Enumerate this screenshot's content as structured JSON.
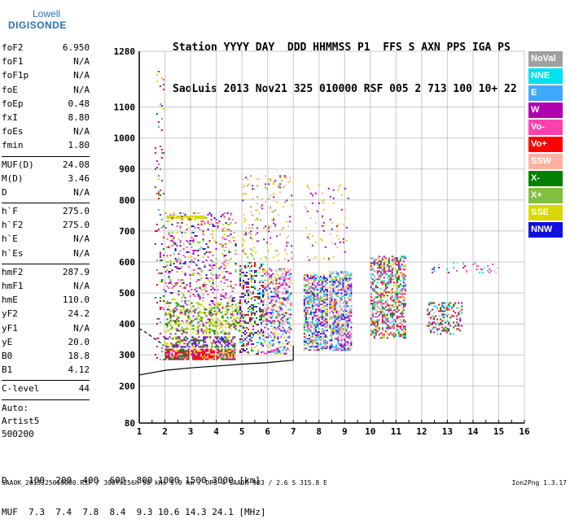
{
  "logo": {
    "line1": "Lowell",
    "line2": "DIGISONDE"
  },
  "header": {
    "line1": "Station YYYY DAY  DDD HHMMSS P1  FFS S AXN PPS IGA PS",
    "line2": "SaoLuis 2013 Nov21 325 010000 RSF 005 2 713 100 10+ 22"
  },
  "params_group1": [
    {
      "k": "foF2",
      "v": "6.950"
    },
    {
      "k": "foF1",
      "v": "N/A"
    },
    {
      "k": "foF1p",
      "v": "N/A"
    },
    {
      "k": "foE",
      "v": "N/A"
    },
    {
      "k": "foEp",
      "v": "0.48"
    },
    {
      "k": "fxI",
      "v": "8.80"
    },
    {
      "k": "foEs",
      "v": "N/A"
    },
    {
      "k": "fmin",
      "v": "1.80"
    }
  ],
  "params_group2": [
    {
      "k": "MUF(D)",
      "v": "24.08"
    },
    {
      "k": "M(D)",
      "v": "3.46"
    },
    {
      "k": "D",
      "v": "N/A"
    }
  ],
  "params_group3": [
    {
      "k": "h`F",
      "v": "275.0"
    },
    {
      "k": "h`F2",
      "v": "275.0"
    },
    {
      "k": "h`E",
      "v": "N/A"
    },
    {
      "k": "h`Es",
      "v": "N/A"
    }
  ],
  "params_group4": [
    {
      "k": "hmF2",
      "v": "287.9"
    },
    {
      "k": "hmF1",
      "v": "N/A"
    },
    {
      "k": "hmE",
      "v": "110.0"
    },
    {
      "k": "yF2",
      "v": "24.2"
    },
    {
      "k": "yF1",
      "v": "N/A"
    },
    {
      "k": "yE",
      "v": "20.0"
    },
    {
      "k": "B0",
      "v": "18.8"
    },
    {
      "k": "B1",
      "v": "4.12"
    }
  ],
  "clevel": {
    "k": "C-level",
    "v": "44"
  },
  "auto": {
    "line1": "Auto:",
    "line2": "Artist5",
    "line3": "500200"
  },
  "legend": [
    {
      "label": "NoVal",
      "color": "#a0a0a0"
    },
    {
      "label": "NNE",
      "color": "#00e0f0"
    },
    {
      "label": "E",
      "color": "#40a8ff"
    },
    {
      "label": "W",
      "color": "#b000b0"
    },
    {
      "label": "Vo-",
      "color": "#ff40b0"
    },
    {
      "label": "Vo+",
      "color": "#ff0000"
    },
    {
      "label": "SSW",
      "color": "#ffb0a0"
    },
    {
      "label": "X-",
      "color": "#008000"
    },
    {
      "label": "X+",
      "color": "#80c040"
    },
    {
      "label": "SSE",
      "color": "#d8d800"
    },
    {
      "label": "NNW",
      "color": "#1010e0"
    }
  ],
  "footer": {
    "line1": "D    100  200  400  600  800 1000 1500 3000 [km]",
    "line2": "MUF  7.3  7.4  7.8  8.4  9.3 10.6 14.3 24.1 [MHz]"
  },
  "bottom": {
    "info": "SAA0K_2013325010000.RSF / 300fx256h 50 kHs 5.0 km / DPS-4 SAA0K 903 / 2.6 S 315.8 E",
    "version": "Ion2Png 1.3.17"
  },
  "chart_data": {
    "type": "scatter",
    "x_ticks": [
      1,
      2,
      3,
      4,
      5,
      6,
      7,
      8,
      9,
      10,
      11,
      12,
      13,
      14,
      15,
      16
    ],
    "y_ticks": [
      80,
      200,
      300,
      400,
      500,
      600,
      700,
      800,
      900,
      1000,
      1100,
      1280
    ],
    "xlim": [
      1,
      16
    ],
    "ylim": [
      80,
      1280
    ],
    "grid": true,
    "legend_position": "right",
    "trace_curve": [
      [
        1,
        235
      ],
      [
        2,
        250
      ],
      [
        3,
        258
      ],
      [
        4,
        264
      ],
      [
        5,
        270
      ],
      [
        6,
        275
      ],
      [
        7,
        283
      ]
    ],
    "trace_dashed": [
      [
        1,
        385
      ],
      [
        1.3,
        370
      ],
      [
        1.6,
        352
      ],
      [
        1.9,
        335
      ]
    ],
    "clusters": [
      {
        "x": [
          1.6,
          2.0
        ],
        "y": [
          280,
          1280
        ],
        "density": 0.08,
        "colors": [
          "#ff0000",
          "#b000b0",
          "#d8d800",
          "#008000",
          "#40a8ff",
          "#ff40b0"
        ]
      },
      {
        "x": [
          2.0,
          3.0
        ],
        "y": [
          280,
          320
        ],
        "density": 0.9,
        "colors": [
          "#ff0000",
          "#ff0000",
          "#b000b0",
          "#d8d800",
          "#008000",
          "#ffb0a0"
        ]
      },
      {
        "x": [
          3.0,
          4.0
        ],
        "y": [
          280,
          320
        ],
        "density": 0.9,
        "colors": [
          "#ff0000",
          "#ff0000",
          "#ff0000",
          "#b000b0",
          "#d8d800",
          "#ffb0a0"
        ]
      },
      {
        "x": [
          4.0,
          4.8
        ],
        "y": [
          280,
          320
        ],
        "density": 0.8,
        "colors": [
          "#ff0000",
          "#ffb0a0",
          "#b000b0",
          "#d8d800",
          "#008000"
        ]
      },
      {
        "x": [
          1.9,
          4.8
        ],
        "y": [
          320,
          360
        ],
        "density": 0.55,
        "colors": [
          "#b000b0",
          "#b000b0",
          "#d8d800",
          "#1010e0",
          "#008000"
        ]
      },
      {
        "x": [
          2.0,
          5.0
        ],
        "y": [
          360,
          470
        ],
        "density": 0.4,
        "colors": [
          "#d8d800",
          "#d8d800",
          "#80c040",
          "#b000b0",
          "#008000"
        ]
      },
      {
        "x": [
          2.0,
          4.8
        ],
        "y": [
          470,
          760
        ],
        "density": 0.18,
        "colors": [
          "#d8d800",
          "#b000b0",
          "#80c040",
          "#1010e0",
          "#ff40b0"
        ]
      },
      {
        "x": [
          2.0,
          3.6
        ],
        "y": [
          735,
          750
        ],
        "density": 0.8,
        "colors": [
          "#d8d800",
          "#d8d800",
          "#d8d800"
        ]
      },
      {
        "x": [
          4.9,
          5.9
        ],
        "y": [
          300,
          600
        ],
        "density": 0.35,
        "colors": [
          "#d8d800",
          "#1010e0",
          "#b000b0",
          "#ff0000",
          "#008000",
          "#00e0f0"
        ]
      },
      {
        "x": [
          5.8,
          7.0
        ],
        "y": [
          300,
          580
        ],
        "density": 0.4,
        "colors": [
          "#d8d800",
          "#ffb0a0",
          "#ff40b0",
          "#1010e0",
          "#00e0f0",
          "#b000b0"
        ]
      },
      {
        "x": [
          5.0,
          7.0
        ],
        "y": [
          600,
          880
        ],
        "density": 0.1,
        "colors": [
          "#d8d800",
          "#b000b0",
          "#ffb0a0",
          "#80c040"
        ]
      },
      {
        "x": [
          7.4,
          8.4
        ],
        "y": [
          310,
          560
        ],
        "density": 0.6,
        "colors": [
          "#00e0f0",
          "#40a8ff",
          "#ff40b0",
          "#d8d800",
          "#1010e0",
          "#b000b0",
          "#80c040"
        ]
      },
      {
        "x": [
          8.4,
          9.3
        ],
        "y": [
          310,
          570
        ],
        "density": 0.6,
        "colors": [
          "#00e0f0",
          "#40a8ff",
          "#ff40b0",
          "#d8d800",
          "#1010e0",
          "#b000b0",
          "#ffb0a0"
        ]
      },
      {
        "x": [
          7.4,
          9.3
        ],
        "y": [
          600,
          850
        ],
        "density": 0.05,
        "colors": [
          "#ffb0a0",
          "#b000b0",
          "#d8d800"
        ]
      },
      {
        "x": [
          10.0,
          11.4
        ],
        "y": [
          350,
          620
        ],
        "density": 0.45,
        "colors": [
          "#ff40b0",
          "#b000b0",
          "#00e0f0",
          "#008000",
          "#ff0000",
          "#d8d800"
        ]
      },
      {
        "x": [
          12.2,
          13.6
        ],
        "y": [
          360,
          470
        ],
        "density": 0.3,
        "colors": [
          "#b000b0",
          "#00e0f0",
          "#ff0000",
          "#ffb0a0",
          "#008000"
        ]
      },
      {
        "x": [
          12.2,
          15.0
        ],
        "y": [
          560,
          600
        ],
        "density": 0.12,
        "colors": [
          "#ffb0a0",
          "#ff40b0",
          "#00e0f0",
          "#b000b0"
        ]
      }
    ]
  }
}
